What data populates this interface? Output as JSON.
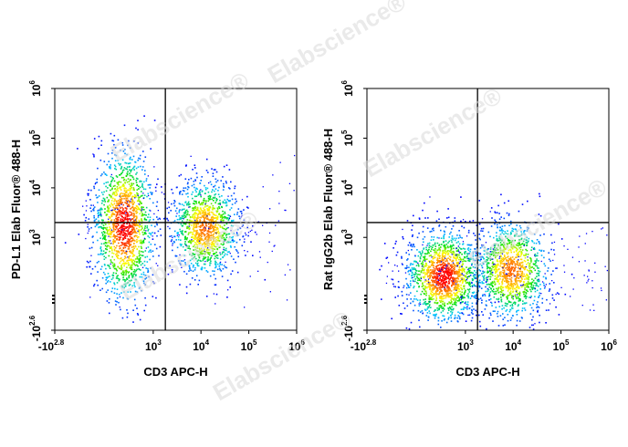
{
  "chart_data": [
    {
      "type": "scatter",
      "subtype": "flow-cytometry-density-plot",
      "xlabel": "CD3 APC-H",
      "ylabel": "PD-L1 Elab Fluor® 488-H",
      "x_scale": "biexponential",
      "y_scale": "biexponential",
      "xlim": [
        -630,
        1000000
      ],
      "ylim": [
        -400,
        1000000
      ],
      "x_ticks": [
        {
          "base": "-10",
          "exp": "2.8"
        },
        {
          "base": "10",
          "exp": "3"
        },
        {
          "base": "10",
          "exp": "4"
        },
        {
          "base": "10",
          "exp": "5"
        },
        {
          "base": "10",
          "exp": "6"
        }
      ],
      "y_ticks": [
        {
          "base": "-10",
          "exp": "2.6"
        },
        {
          "base": "10",
          "exp": "3"
        },
        {
          "base": "10",
          "exp": "4"
        },
        {
          "base": "10",
          "exp": "5"
        },
        {
          "base": "10",
          "exp": "6"
        }
      ],
      "quadrant_gate": {
        "x": 1800,
        "y": 2000
      },
      "populations": [
        {
          "x_center": 220,
          "y_center": 1800,
          "relative_density": "high"
        },
        {
          "x_center": 12000,
          "y_center": 1600,
          "relative_density": "medium"
        }
      ],
      "grid": false,
      "colormap": [
        "#0000ff",
        "#00c8ff",
        "#00e000",
        "#ffff00",
        "#ff8c00",
        "#ff0000"
      ]
    },
    {
      "type": "scatter",
      "subtype": "flow-cytometry-density-plot",
      "xlabel": "CD3 APC-H",
      "ylabel": "Rat IgG2b Elab Fluor® 488-H",
      "x_scale": "biexponential",
      "y_scale": "biexponential",
      "xlim": [
        -630,
        1000000
      ],
      "ylim": [
        -400,
        1000000
      ],
      "x_ticks": [
        {
          "base": "-10",
          "exp": "2.8"
        },
        {
          "base": "10",
          "exp": "3"
        },
        {
          "base": "10",
          "exp": "4"
        },
        {
          "base": "10",
          "exp": "5"
        },
        {
          "base": "10",
          "exp": "6"
        }
      ],
      "y_ticks": [
        {
          "base": "-10",
          "exp": "2.6"
        },
        {
          "base": "10",
          "exp": "3"
        },
        {
          "base": "10",
          "exp": "4"
        },
        {
          "base": "10",
          "exp": "5"
        },
        {
          "base": "10",
          "exp": "6"
        }
      ],
      "quadrant_gate": {
        "x": 1800,
        "y": 2000
      },
      "populations": [
        {
          "x_center": 330,
          "y_center": 140,
          "relative_density": "high"
        },
        {
          "x_center": 9000,
          "y_center": 200,
          "relative_density": "medium"
        }
      ],
      "grid": false,
      "colormap": [
        "#0000ff",
        "#00c8ff",
        "#00e000",
        "#ffff00",
        "#ff8c00",
        "#ff0000"
      ]
    }
  ],
  "watermark": "Elabscience®"
}
